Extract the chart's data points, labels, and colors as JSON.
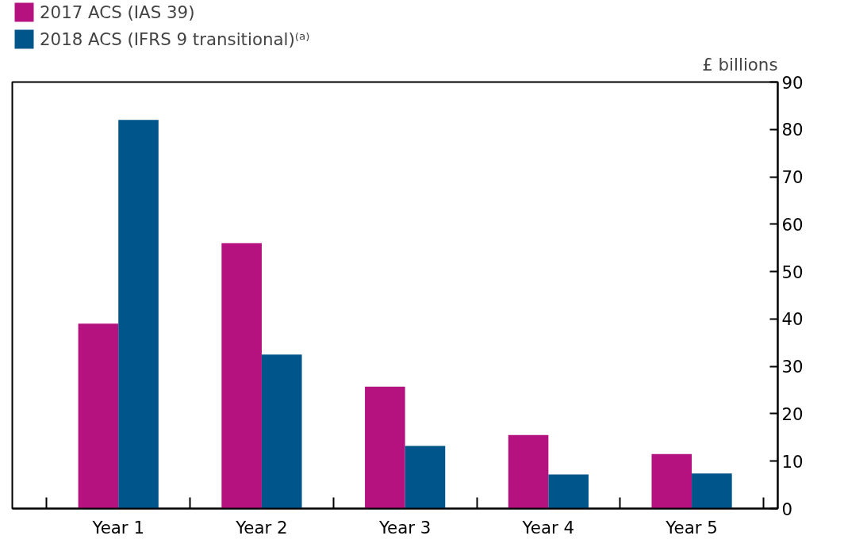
{
  "chart_data": {
    "type": "bar",
    "ylabel": "£ billions",
    "categories": [
      "Year 1",
      "Year 2",
      "Year 3",
      "Year 4",
      "Year 5"
    ],
    "series": [
      {
        "name": "2017 ACS (IAS 39)",
        "color": "#b5117f",
        "values": [
          39,
          56,
          25.7,
          15.5,
          11.5
        ]
      },
      {
        "name": "2018 ACS (IFRS 9 transitional)⁽ᵃ⁾",
        "color": "#00558a",
        "values": [
          82,
          32.5,
          13.2,
          7.2,
          7.4
        ]
      }
    ],
    "ylim": [
      0,
      90
    ],
    "yticks": [
      0,
      10,
      20,
      30,
      40,
      50,
      60,
      70,
      80,
      90
    ],
    "grid": false,
    "legend": "top left"
  }
}
